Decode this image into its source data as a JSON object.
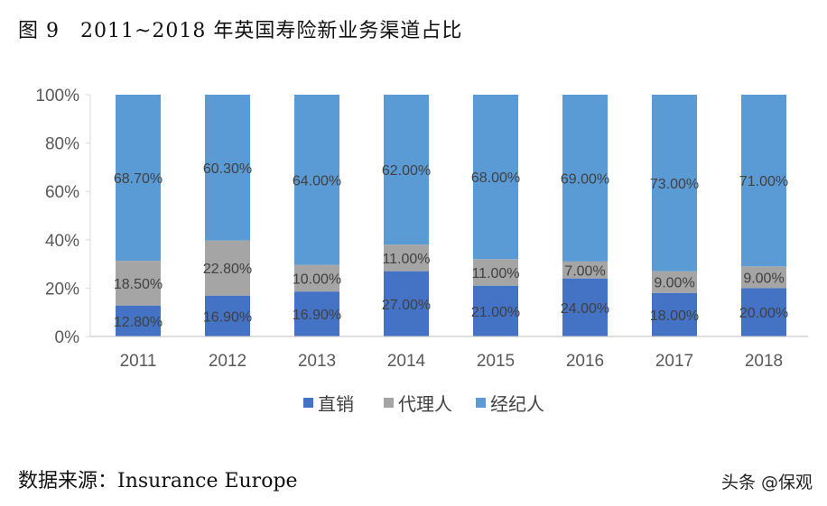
{
  "title": "图 9　2011~2018 年英国寿险新业务渠道占比",
  "source": "数据来源：Insurance Europe",
  "watermark": "头条 @保观",
  "chart_data": {
    "type": "bar",
    "stacked": "percent",
    "categories": [
      "2011",
      "2012",
      "2013",
      "2014",
      "2015",
      "2016",
      "2017",
      "2018"
    ],
    "series": [
      {
        "name": "直销",
        "color": "#4472C4",
        "values": [
          12.8,
          16.9,
          16.9,
          27,
          21,
          24,
          18,
          20
        ],
        "labels": [
          "12.80%",
          "16.90%",
          "16.90%",
          "27.00%",
          "21.00%",
          "24.00%",
          "18.00%",
          "20.00%"
        ]
      },
      {
        "name": "代理人",
        "color": "#A5A5A5",
        "values": [
          18.5,
          22.8,
          10,
          11,
          11,
          7,
          9,
          9
        ],
        "labels": [
          "18.50%",
          "22.80%",
          "10.00%",
          "11.00%",
          "11.00%",
          "7.00%",
          "9.00%",
          "9.00%"
        ]
      },
      {
        "name": "经纪人",
        "color": "#5B9BD5",
        "values": [
          68.7,
          60.3,
          64,
          62,
          68,
          69,
          73,
          71
        ],
        "labels": [
          "68.70%",
          "60.30%",
          "64.00%",
          "62.00%",
          "68.00%",
          "69.00%",
          "73.00%",
          "71.00%"
        ]
      }
    ],
    "yticks": [
      "0%",
      "20%",
      "40%",
      "60%",
      "80%",
      "100%"
    ],
    "ylim": [
      0,
      100
    ],
    "grid": false,
    "legend": "bottom"
  }
}
